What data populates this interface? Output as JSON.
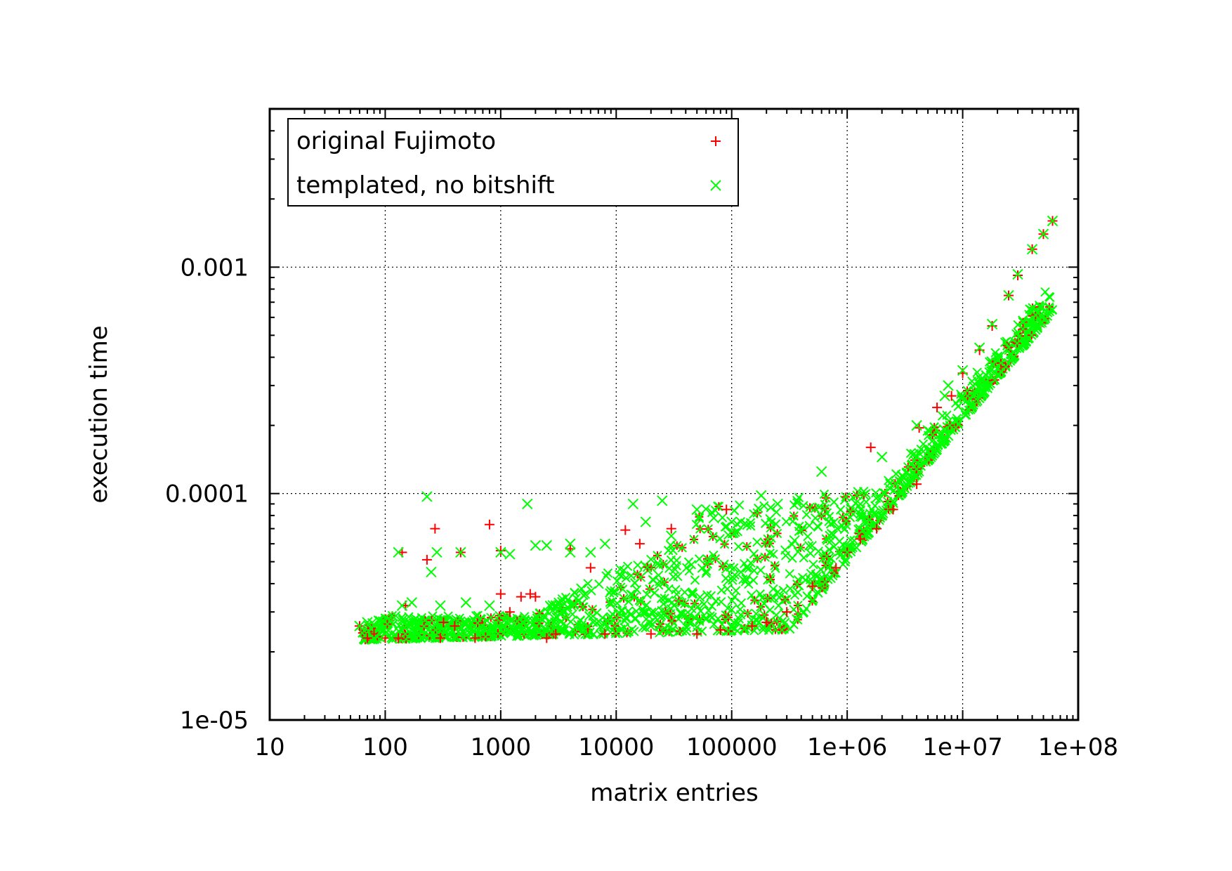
{
  "chart_data": {
    "type": "scatter",
    "title": "",
    "xlabel": "matrix entries",
    "ylabel": "execution time",
    "xscale": "log",
    "yscale": "log",
    "xlim": [
      10,
      100000000
    ],
    "ylim": [
      1e-05,
      0.005
    ],
    "grid": true,
    "legend_position": "top-left",
    "x_ticks": [
      {
        "value": 10,
        "label": "10"
      },
      {
        "value": 100,
        "label": "100"
      },
      {
        "value": 1000,
        "label": "1000"
      },
      {
        "value": 10000,
        "label": "10000"
      },
      {
        "value": 100000,
        "label": "100000"
      },
      {
        "value": 1000000,
        "label": "1e+06"
      },
      {
        "value": 10000000,
        "label": "1e+07"
      },
      {
        "value": 100000000,
        "label": "1e+08"
      }
    ],
    "y_ticks": [
      {
        "value": 1e-05,
        "label": "1e-05"
      },
      {
        "value": 0.0001,
        "label": "0.0001"
      },
      {
        "value": 0.001,
        "label": "0.001"
      }
    ],
    "series": [
      {
        "name": "original Fujimoto",
        "marker": "plus",
        "color": "#ff0000",
        "points": [
          [
            60,
            2.6e-05
          ],
          [
            70,
            2.3e-05
          ],
          [
            80,
            2.4e-05
          ],
          [
            100,
            2.3e-05
          ],
          [
            130,
            2.3e-05
          ],
          [
            140,
            5.5e-05
          ],
          [
            150,
            3.2e-05
          ],
          [
            230,
            5.1e-05
          ],
          [
            270,
            7e-05
          ],
          [
            300,
            2.3e-05
          ],
          [
            320,
            2.7e-05
          ],
          [
            400,
            2.6e-05
          ],
          [
            450,
            5.5e-05
          ],
          [
            600,
            2.3e-05
          ],
          [
            800,
            7.3e-05
          ],
          [
            1000,
            3.6e-05
          ],
          [
            1000,
            5.6e-05
          ],
          [
            1200,
            3e-05
          ],
          [
            1500,
            3.5e-05
          ],
          [
            1800,
            3.6e-05
          ],
          [
            2000,
            3.5e-05
          ],
          [
            2500,
            2.3e-05
          ],
          [
            3000,
            2.4e-05
          ],
          [
            4000,
            5.7e-05
          ],
          [
            6000,
            4.7e-05
          ],
          [
            8000,
            2.4e-05
          ],
          [
            12000,
            6.9e-05
          ],
          [
            16000,
            6e-05
          ],
          [
            20000,
            2.4e-05
          ],
          [
            30000,
            7e-05
          ],
          [
            50000,
            2.4e-05
          ],
          [
            80000,
            2.5e-05
          ],
          [
            90000,
            8.5e-05
          ],
          [
            150000,
            2.6e-05
          ],
          [
            200000,
            2.7e-05
          ],
          [
            300000,
            3e-05
          ],
          [
            500000,
            3.9e-05
          ],
          [
            800000,
            4.7e-05
          ],
          [
            1000000,
            5.5e-05
          ],
          [
            1300000,
            6.3e-05
          ],
          [
            1600000,
            0.00016
          ],
          [
            1800000,
            7e-05
          ],
          [
            2500000,
            8.5e-05
          ],
          [
            4000000,
            0.00011
          ],
          [
            4200000,
            0.000195
          ],
          [
            6000000,
            0.00024
          ],
          [
            8000000,
            0.00027
          ],
          [
            10000000,
            0.00034
          ],
          [
            14000000,
            0.00043
          ],
          [
            18000000,
            0.00055
          ],
          [
            25000000,
            0.00075
          ],
          [
            30000000,
            0.00092
          ],
          [
            40000000,
            0.0012
          ],
          [
            50000000,
            0.0014
          ],
          [
            60000000,
            0.0016
          ]
        ]
      },
      {
        "name": "templated, no bitshift",
        "marker": "cross",
        "color": "#00ff00",
        "points": [
          [
            60,
            2.6e-05
          ],
          [
            70,
            2.7e-05
          ],
          [
            80,
            2.3e-05
          ],
          [
            100,
            2.4e-05
          ],
          [
            130,
            5.5e-05
          ],
          [
            140,
            3.2e-05
          ],
          [
            170,
            3.3e-05
          ],
          [
            230,
            9.7e-05
          ],
          [
            250,
            4.5e-05
          ],
          [
            280,
            5.5e-05
          ],
          [
            300,
            3.2e-05
          ],
          [
            450,
            5.5e-05
          ],
          [
            500,
            3.3e-05
          ],
          [
            800,
            3.2e-05
          ],
          [
            1000,
            5.5e-05
          ],
          [
            1200,
            5.4e-05
          ],
          [
            1700,
            9e-05
          ],
          [
            2000,
            5.9e-05
          ],
          [
            2500,
            5.9e-05
          ],
          [
            3000,
            3.2e-05
          ],
          [
            4000,
            6e-05
          ],
          [
            4000,
            5.5e-05
          ],
          [
            5000,
            3.8e-05
          ],
          [
            6000,
            5.5e-05
          ],
          [
            8000,
            6e-05
          ],
          [
            14000,
            9e-05
          ],
          [
            18000,
            7.5e-05
          ],
          [
            25000,
            9.3e-05
          ],
          [
            30000,
            6.5e-05
          ],
          [
            50000,
            8.5e-05
          ],
          [
            70000,
            7.8e-05
          ],
          [
            100000,
            7.5e-05
          ],
          [
            120000,
            4.5e-05
          ],
          [
            180000,
            9.8e-05
          ],
          [
            250000,
            9e-05
          ],
          [
            350000,
            6.2e-05
          ],
          [
            600000,
            0.000125
          ],
          [
            1000000,
            5.5e-05
          ],
          [
            1500000,
            7.5e-05
          ],
          [
            2000000,
            0.000145
          ],
          [
            3000000,
            0.00012
          ],
          [
            4000000,
            0.0002
          ],
          [
            5000000,
            0.00019
          ],
          [
            7000000,
            0.00027
          ],
          [
            7500000,
            0.0003
          ],
          [
            10000000,
            0.00035
          ],
          [
            14000000,
            0.00044
          ],
          [
            18000000,
            0.00056
          ],
          [
            25000000,
            0.00075
          ],
          [
            30000000,
            0.00093
          ],
          [
            40000000,
            0.0012
          ],
          [
            50000000,
            0.0014
          ],
          [
            60000000,
            0.0016
          ]
        ]
      }
    ]
  }
}
